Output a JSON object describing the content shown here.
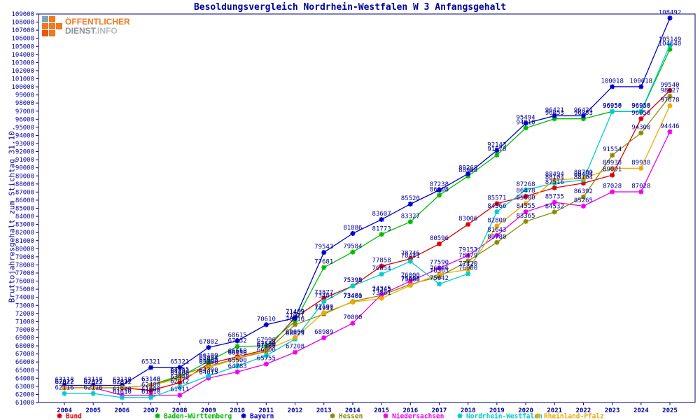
{
  "title": "Besoldungsvergleich Nordrhein-Westfalen W 3 Anfangsgehalt",
  "logo": {
    "top": "ÖFFENTLICHER",
    "bottom": "DIENST",
    "bottom2": ".INFO"
  },
  "chart_data": {
    "type": "line",
    "title": "Besoldungsvergleich Nordrhein-Westfalen W 3 Anfangsgehalt",
    "ylabel": "Bruttojahresgehalt zum Stichtag 31.10.",
    "xlabel": "",
    "x": [
      2004,
      2005,
      2006,
      2007,
      2008,
      2009,
      2010,
      2011,
      2012,
      2013,
      2014,
      2015,
      2016,
      2017,
      2018,
      2019,
      2020,
      2021,
      2022,
      2023,
      2024,
      2025
    ],
    "ylim": [
      61000,
      109000
    ],
    "ytick_step": 1000,
    "grid": false,
    "legend_position": "bottom",
    "point_labels": true,
    "axis_color": "#000080",
    "label_color": "#000099",
    "series": [
      {
        "name": "Bund",
        "color": "#dd0000",
        "values": [
          62822,
          62822,
          62822,
          62488,
          63448,
          65804,
          66650,
          67536,
          71489,
          73877,
          75398,
          77858,
          78746,
          80596,
          83006,
          85571,
          86478,
          87516,
          88104,
          89091,
          96058,
          99540
        ]
      },
      {
        "name": "Baden-Württemberg",
        "color": "#00bb00",
        "values": [
          62822,
          62822,
          62822,
          63148,
          64154,
          66100,
          67932,
          67996,
          71021,
          77681,
          79584,
          81773,
          83327,
          86608,
          88968,
          91570,
          94910,
          96053,
          96053,
          96950,
          96950,
          104640
        ]
      },
      {
        "name": "Bayern",
        "color": "#0000cc",
        "values": [
          63118,
          63118,
          63118,
          65321,
          65321,
          67802,
          68615,
          70610,
          71453,
          79543,
          81886,
          83607,
          85520,
          87238,
          89268,
          92143,
          95494,
          96421,
          96421,
          100018,
          100018,
          108492
        ]
      },
      {
        "name": "Hessen",
        "color": "#8a8a00",
        "values": [
          62822,
          62822,
          62822,
          63148,
          64355,
          65500,
          66450,
          67300,
          70616,
          71931,
          73481,
          74245,
          75608,
          76563,
          78479,
          80780,
          83365,
          84532,
          86392,
          91554,
          94300,
          98827
        ]
      },
      {
        "name": "Niedersachsen",
        "color": "#ee00ee",
        "values": [
          62822,
          62822,
          61900,
          61900,
          61911,
          64015,
          64783,
          65755,
          67208,
          68989,
          70800,
          74345,
          76000,
          77590,
          79153,
          81643,
          84555,
          85735,
          85265,
          87028,
          87028,
          94446
        ]
      },
      {
        "name": "Nordrhein-Westfalen",
        "color": "#00cccc",
        "values": [
          62116,
          62116,
          61610,
          61610,
          62912,
          64300,
          65500,
          66800,
          68823,
          73481,
          75395,
          76854,
          78441,
          75642,
          76900,
          84566,
          87268,
          88104,
          88494,
          96958,
          96958,
          105149
        ]
      },
      {
        "name": "Rheinland-Pfalz",
        "color": "#eeaa00",
        "values": [
          62822,
          62822,
          62822,
          63148,
          63900,
          65300,
          66450,
          67500,
          69000,
          72100,
          73400,
          73861,
          75468,
          76866,
          77420,
          82809,
          85600,
          88494,
          88700,
          89938,
          89938,
          97678
        ]
      }
    ]
  }
}
